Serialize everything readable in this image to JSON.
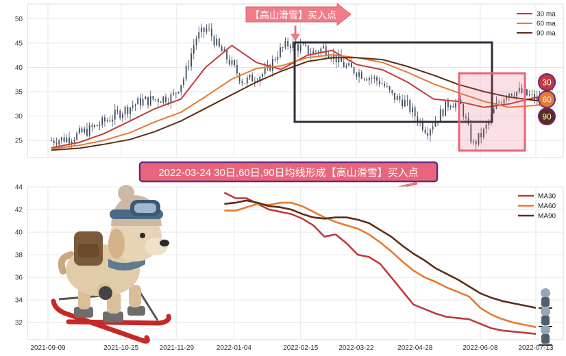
{
  "colors": {
    "ma30": "#c0393b",
    "ma60": "#e57a2e",
    "ma90": "#5a2d18",
    "candles": "#3d4a5c",
    "callout_fill": "#f07c87",
    "callout_text": "#ffffff",
    "banner_border": "#6b2a7a",
    "banner_fill": "#e8667c",
    "box_dark": "#2d2d3a",
    "box_pink": "#e8647a"
  },
  "icons": {
    "mascot": "skiing-dog-icon",
    "small_mascots": "small-skier-icon",
    "arrow_down": "arrow-down-icon",
    "arrow_left": "arrow-left-icon"
  },
  "top_callout": "【高山滑雪】买入点",
  "banner": "2022-03-24 30日,60日,90日均线形成【高山滑雪】买入点",
  "badges": [
    "30",
    "60",
    "90"
  ],
  "chart_data": [
    {
      "type": "line",
      "panel": "top",
      "title": "",
      "xlabel": "",
      "ylabel": "",
      "x_range": [
        "2021-09-09",
        "2022-07-13"
      ],
      "ylim": [
        21.5,
        53
      ],
      "y_ticks": [
        25,
        30,
        35,
        40,
        45,
        50
      ],
      "grid": true,
      "legend_position": "top-right",
      "legend": [
        "30 ma",
        "60 ma",
        "90 ma"
      ],
      "candles_approx_close": {
        "x": [
          "2021-09-09",
          "2021-09-20",
          "2021-10-01",
          "2021-10-12",
          "2021-10-22",
          "2021-11-02",
          "2021-11-12",
          "2021-11-22",
          "2021-11-29",
          "2021-12-06",
          "2021-12-13",
          "2021-12-20",
          "2021-12-27",
          "2022-01-04",
          "2022-01-11",
          "2022-01-18",
          "2022-01-25",
          "2022-02-01",
          "2022-02-08",
          "2022-02-15",
          "2022-02-22",
          "2022-03-01",
          "2022-03-08",
          "2022-03-15",
          "2022-03-22",
          "2022-03-29",
          "2022-04-05",
          "2022-04-12",
          "2022-04-19",
          "2022-04-26",
          "2022-05-03",
          "2022-05-10",
          "2022-05-17",
          "2022-05-24",
          "2022-05-31",
          "2022-06-07",
          "2022-06-14",
          "2022-06-21",
          "2022-06-28",
          "2022-07-05",
          "2022-07-13"
        ],
        "y": [
          25,
          25.5,
          27,
          29,
          31,
          33,
          33.5,
          34,
          38,
          46,
          48,
          44,
          41,
          37,
          38,
          39,
          43,
          45,
          44,
          43,
          44,
          42,
          40,
          39,
          38,
          37,
          34,
          33,
          30,
          27,
          30,
          33,
          32,
          24,
          27,
          32,
          35,
          35,
          34,
          33,
          36
        ]
      },
      "series": [
        {
          "name": "30 ma",
          "x": [
            "2021-09-09",
            "2021-09-26",
            "2021-10-11",
            "2021-10-27",
            "2021-11-11",
            "2021-11-27",
            "2021-12-12",
            "2021-12-28",
            "2022-01-12",
            "2022-01-27",
            "2022-02-12",
            "2022-02-27",
            "2022-03-14",
            "2022-03-30",
            "2022-04-14",
            "2022-04-30",
            "2022-05-15",
            "2022-05-31",
            "2022-06-15",
            "2022-07-01",
            "2022-07-13"
          ],
          "y": [
            23.5,
            24.6,
            26.4,
            29.0,
            31.5,
            33.5,
            40.0,
            44.5,
            41.0,
            39.6,
            42.5,
            43.5,
            40.6,
            39.5,
            37.0,
            33.5,
            33.0,
            31.8,
            32.5,
            33.8,
            34.2
          ]
        },
        {
          "name": "60 ma",
          "x": [
            "2021-09-09",
            "2021-09-26",
            "2021-10-11",
            "2021-10-27",
            "2021-11-11",
            "2021-11-27",
            "2021-12-12",
            "2021-12-28",
            "2022-01-12",
            "2022-01-27",
            "2022-02-12",
            "2022-02-27",
            "2022-03-14",
            "2022-03-30",
            "2022-04-14",
            "2022-04-30",
            "2022-05-15",
            "2022-05-31",
            "2022-06-15",
            "2022-07-01",
            "2022-07-13"
          ],
          "y": [
            23.3,
            24.0,
            25.0,
            26.6,
            28.8,
            30.8,
            34.0,
            37.6,
            39.8,
            40.3,
            42.0,
            42.6,
            42.0,
            41.0,
            39.0,
            36.6,
            34.8,
            33.0,
            31.8,
            32.2,
            32.8
          ]
        },
        {
          "name": "90 ma",
          "x": [
            "2021-09-09",
            "2021-09-26",
            "2021-10-11",
            "2021-10-27",
            "2021-11-11",
            "2021-11-27",
            "2021-12-12",
            "2021-12-28",
            "2022-01-12",
            "2022-01-27",
            "2022-02-12",
            "2022-02-27",
            "2022-03-14",
            "2022-03-30",
            "2022-04-14",
            "2022-04-30",
            "2022-05-15",
            "2022-05-31",
            "2022-06-15",
            "2022-07-01",
            "2022-07-13"
          ],
          "y": [
            23.0,
            23.4,
            24.2,
            25.2,
            26.8,
            29.0,
            31.6,
            34.4,
            37.0,
            39.2,
            41.2,
            42.0,
            42.0,
            41.6,
            40.2,
            38.4,
            36.5,
            35.0,
            33.9,
            33.2,
            33.0
          ]
        }
      ]
    },
    {
      "type": "line",
      "panel": "bottom",
      "title": "",
      "xlabel": "",
      "ylabel": "",
      "x_ticks": [
        "2021-09-09",
        "2021-10-25",
        "2021-11-29",
        "2022-01-04",
        "2022-02-15",
        "2022-03-22",
        "2022-04-28",
        "2022-06-08",
        "2022-07-13"
      ],
      "x_range": [
        "2021-09-09",
        "2022-07-13"
      ],
      "ylim": [
        30.5,
        44
      ],
      "y_ticks": [
        32,
        34,
        36,
        38,
        40,
        42,
        44
      ],
      "grid": true,
      "legend_position": "top-right",
      "legend": [
        "MA30",
        "MA60",
        "MA90"
      ],
      "series": [
        {
          "name": "MA30",
          "x": [
            "2021-12-29",
            "2022-01-05",
            "2022-01-12",
            "2022-01-19",
            "2022-01-26",
            "2022-02-02",
            "2022-02-09",
            "2022-02-16",
            "2022-02-23",
            "2022-03-02",
            "2022-03-09",
            "2022-03-16",
            "2022-03-23",
            "2022-03-30",
            "2022-04-06",
            "2022-04-13",
            "2022-04-20",
            "2022-04-27",
            "2022-05-04",
            "2022-05-11",
            "2022-05-18",
            "2022-05-25",
            "2022-06-01",
            "2022-06-08",
            "2022-06-15",
            "2022-06-22",
            "2022-06-29",
            "2022-07-06",
            "2022-07-13"
          ],
          "y": [
            43.5,
            43.0,
            43.0,
            42.5,
            42.0,
            41.8,
            41.6,
            41.2,
            40.6,
            39.6,
            39.8,
            39.0,
            38.0,
            37.8,
            37.2,
            36.0,
            34.8,
            33.6,
            33.2,
            32.8,
            32.5,
            32.4,
            32.3,
            31.9,
            31.5,
            31.3,
            31.2,
            31.1,
            31.0
          ]
        },
        {
          "name": "MA60",
          "x": [
            "2021-12-29",
            "2022-01-05",
            "2022-01-12",
            "2022-01-19",
            "2022-01-26",
            "2022-02-02",
            "2022-02-09",
            "2022-02-16",
            "2022-02-23",
            "2022-03-02",
            "2022-03-09",
            "2022-03-16",
            "2022-03-23",
            "2022-03-30",
            "2022-04-06",
            "2022-04-13",
            "2022-04-20",
            "2022-04-27",
            "2022-05-04",
            "2022-05-11",
            "2022-05-18",
            "2022-05-25",
            "2022-06-01",
            "2022-06-08",
            "2022-06-15",
            "2022-06-22",
            "2022-06-29",
            "2022-07-06",
            "2022-07-13"
          ],
          "y": [
            41.9,
            41.9,
            42.2,
            42.5,
            42.4,
            42.6,
            42.6,
            42.3,
            41.8,
            41.3,
            40.9,
            40.6,
            40.3,
            39.8,
            39.1,
            38.3,
            37.4,
            36.6,
            36.0,
            35.6,
            35.1,
            34.7,
            34.3,
            33.3,
            32.7,
            32.3,
            32.0,
            31.8,
            31.6
          ]
        },
        {
          "name": "MA90",
          "x": [
            "2021-12-29",
            "2022-01-05",
            "2022-01-12",
            "2022-01-19",
            "2022-01-26",
            "2022-02-02",
            "2022-02-09",
            "2022-02-16",
            "2022-02-23",
            "2022-03-02",
            "2022-03-09",
            "2022-03-16",
            "2022-03-23",
            "2022-03-30",
            "2022-04-06",
            "2022-04-13",
            "2022-04-20",
            "2022-04-27",
            "2022-05-04",
            "2022-05-11",
            "2022-05-18",
            "2022-05-25",
            "2022-06-01",
            "2022-06-08",
            "2022-06-15",
            "2022-06-22",
            "2022-06-29",
            "2022-07-06",
            "2022-07-13"
          ],
          "y": [
            42.5,
            42.6,
            42.8,
            42.6,
            42.3,
            42.2,
            42.0,
            41.6,
            41.3,
            41.2,
            41.3,
            41.3,
            41.1,
            40.8,
            40.2,
            39.6,
            38.8,
            38.1,
            37.5,
            36.8,
            36.3,
            35.8,
            35.2,
            34.6,
            34.2,
            33.9,
            33.7,
            33.5,
            33.3
          ]
        }
      ]
    }
  ]
}
